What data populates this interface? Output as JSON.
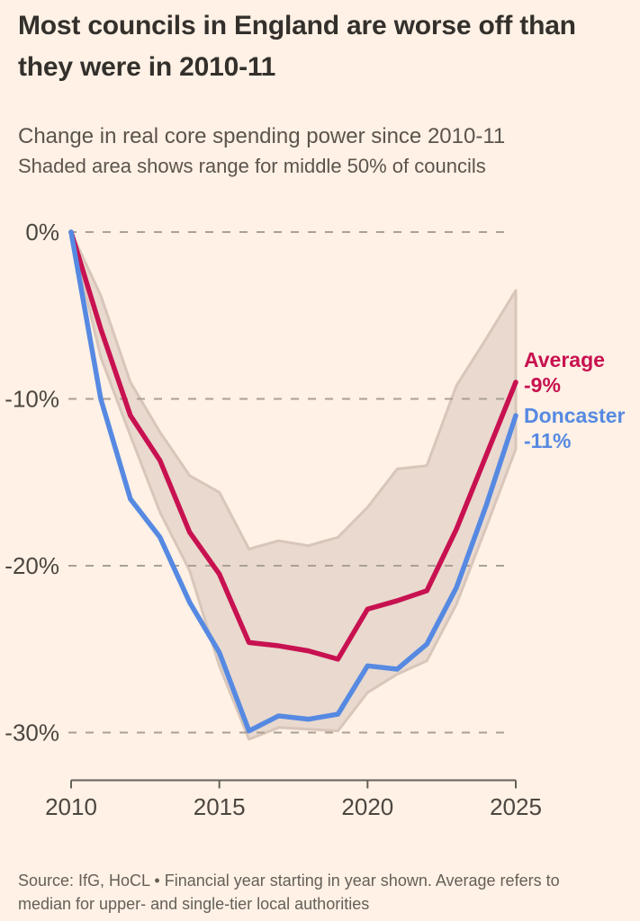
{
  "header": {
    "title_line1": "Most councils in England are worse off than",
    "title_line2": "they were in 2010-11",
    "subtitle": "Change in real core spending power since 2010-11",
    "note": "Shaded area shows range for middle 50% of councils"
  },
  "footer": {
    "source_line1": "Source: IfG, HoCL • Financial year starting in year shown. Average refers to",
    "source_line2": "median for upper- and single-tier local authorities"
  },
  "colors": {
    "background": "#fff1e5",
    "title_text": "#33302c",
    "subtitle_text": "#5b544d",
    "axis_text": "#4c4641",
    "axis_line": "#66605a",
    "gridline": "#aba094",
    "band_fill": "#e9d9ce",
    "band_edge": "#d9c6ba",
    "average_line": "#c81150",
    "doncaster_line": "#5689e2"
  },
  "chart_data": {
    "type": "line",
    "title": "Most councils in England are worse off than they were in 2010-11",
    "subtitle": "Change in real core spending power since 2010-11",
    "band_note": "Shaded area shows range for middle 50% of councils",
    "unit": "%",
    "x": [
      2010,
      2011,
      2012,
      2013,
      2014,
      2015,
      2016,
      2017,
      2018,
      2019,
      2020,
      2021,
      2022,
      2023,
      2024,
      2025
    ],
    "xlim": [
      2010,
      2025
    ],
    "ylim": [
      -32,
      0
    ],
    "grid": "horizontal-dashed",
    "series": [
      {
        "name": "Average",
        "color": "#c81150",
        "end_label": "-9%",
        "values": [
          0,
          -5.8,
          -11,
          -13.7,
          -18,
          -20.5,
          -24.6,
          -24.8,
          -25.1,
          -25.6,
          -22.6,
          -22.1,
          -21.5,
          -17.8,
          -13.4,
          -9
        ]
      },
      {
        "name": "Doncaster",
        "color": "#5689e2",
        "end_label": "-11%",
        "values": [
          0,
          -10,
          -16,
          -18.3,
          -22.2,
          -25.2,
          -29.9,
          -29,
          -29.2,
          -28.9,
          -26,
          -26.2,
          -24.7,
          -21.3,
          -16.4,
          -11
        ]
      }
    ],
    "band": {
      "name": "middle 50% of councils",
      "fill": "#e9d9ce",
      "edge": "#d9c6ba",
      "top": [
        0,
        -3.8,
        -9,
        -12,
        -14.6,
        -15.6,
        -19,
        -18.5,
        -18.8,
        -18.3,
        -16.5,
        -14.2,
        -14,
        -9.2,
        -6.4,
        -3.5
      ],
      "bottom": [
        0,
        -7.5,
        -12.2,
        -16.8,
        -20.3,
        -26,
        -30.4,
        -29.7,
        -29.8,
        -29.9,
        -27.6,
        -26.5,
        -25.7,
        -22.3,
        -17.7,
        -13
      ]
    },
    "x_ticks": [
      {
        "value": 2010,
        "label": "2010"
      },
      {
        "value": 2015,
        "label": "2015"
      },
      {
        "value": 2020,
        "label": "2020"
      },
      {
        "value": 2025,
        "label": "2025"
      }
    ],
    "y_ticks": [
      {
        "value": 0,
        "label": "0%"
      },
      {
        "value": -10,
        "label": "-10%"
      },
      {
        "value": -20,
        "label": "-20%"
      },
      {
        "value": -30,
        "label": "-30%"
      }
    ]
  }
}
